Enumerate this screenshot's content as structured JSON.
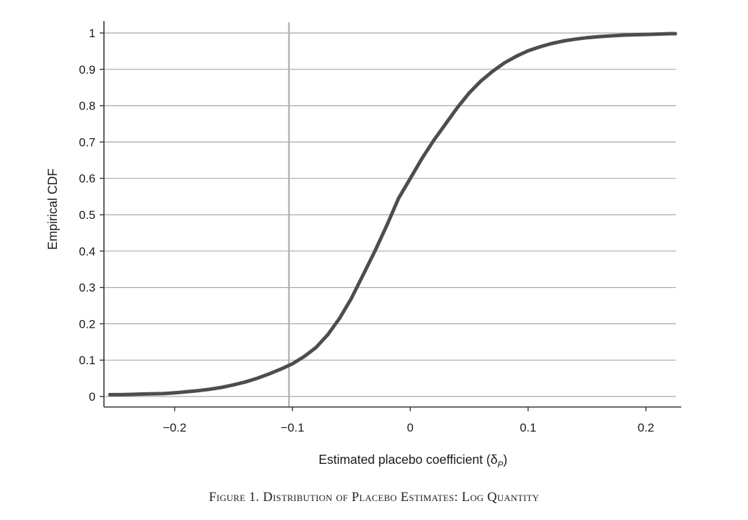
{
  "chart_data": {
    "type": "scatter",
    "xlabel": "Estimated placebo coefficient (δ",
    "xlabel_sub": "P",
    "xlabel_close": ")",
    "ylabel": "Empirical CDF",
    "xlim": [
      -0.26,
      0.23
    ],
    "ylim": [
      0,
      1
    ],
    "x_ticks": [
      -0.2,
      -0.1,
      0,
      0.1,
      0.2
    ],
    "x_tick_labels": [
      "−0.2",
      "−0.1",
      "0",
      "0.1",
      "0.2"
    ],
    "y_ticks": [
      0,
      0.1,
      0.2,
      0.3,
      0.4,
      0.5,
      0.6,
      0.7,
      0.8,
      0.9,
      1
    ],
    "y_tick_labels": [
      "0",
      "0.1",
      "0.2",
      "0.3",
      "0.4",
      "0.5",
      "0.6",
      "0.7",
      "0.8",
      "0.9",
      "1"
    ],
    "grid": "horizontal",
    "reference_line_x": -0.103,
    "series": [
      {
        "color": "#4d4d4d",
        "x": [
          -0.255,
          -0.245,
          -0.235,
          -0.225,
          -0.21,
          -0.2,
          -0.19,
          -0.18,
          -0.17,
          -0.16,
          -0.15,
          -0.14,
          -0.13,
          -0.12,
          -0.11,
          -0.1,
          -0.09,
          -0.08,
          -0.07,
          -0.06,
          -0.05,
          -0.04,
          -0.03,
          -0.02,
          -0.01,
          0,
          0.01,
          0.02,
          0.03,
          0.04,
          0.05,
          0.06,
          0.07,
          0.08,
          0.09,
          0.1,
          0.11,
          0.12,
          0.13,
          0.14,
          0.15,
          0.16,
          0.17,
          0.18,
          0.19,
          0.2,
          0.21,
          0.22,
          0.225
        ],
        "y": [
          0.005,
          0.005,
          0.006,
          0.007,
          0.008,
          0.01,
          0.013,
          0.016,
          0.02,
          0.025,
          0.032,
          0.04,
          0.05,
          0.062,
          0.075,
          0.09,
          0.11,
          0.135,
          0.17,
          0.215,
          0.27,
          0.335,
          0.4,
          0.47,
          0.545,
          0.6,
          0.655,
          0.705,
          0.75,
          0.795,
          0.835,
          0.868,
          0.895,
          0.918,
          0.936,
          0.951,
          0.962,
          0.971,
          0.978,
          0.983,
          0.987,
          0.99,
          0.992,
          0.994,
          0.995,
          0.996,
          0.997,
          0.998,
          0.998
        ]
      }
    ]
  },
  "caption": "Figure 1. Distribution of Placebo Estimates: Log Quantity"
}
